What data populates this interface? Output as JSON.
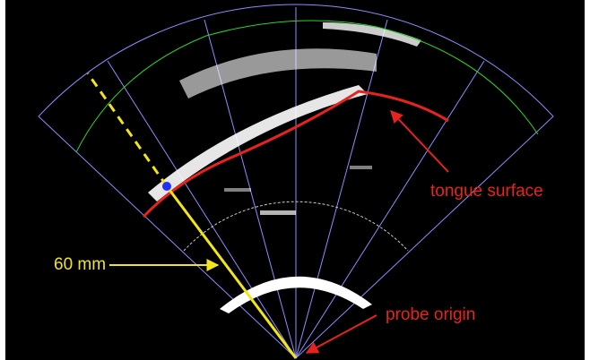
{
  "annotations": {
    "depth_label": "60 mm",
    "surface_label": "tongue surface",
    "origin_label": "probe origin"
  }
}
